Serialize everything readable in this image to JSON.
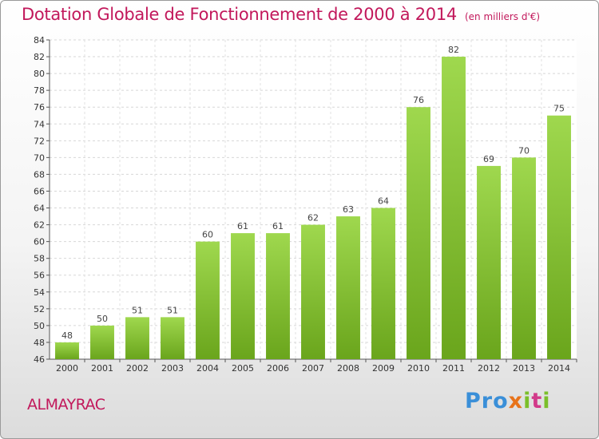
{
  "chart_data": {
    "type": "bar",
    "title": "Dotation Globale de Fonctionnement de 2000 à 2014",
    "subtitle": "(en milliers d'€)",
    "categories": [
      "2000",
      "2001",
      "2002",
      "2003",
      "2004",
      "2005",
      "2006",
      "2007",
      "2008",
      "2009",
      "2010",
      "2011",
      "2012",
      "2013",
      "2014"
    ],
    "values": [
      48,
      50,
      51,
      51,
      60,
      61,
      61,
      62,
      63,
      64,
      76,
      82,
      69,
      70,
      75
    ],
    "ylim": [
      46,
      84
    ],
    "yticks": [
      46,
      48,
      50,
      52,
      54,
      56,
      58,
      60,
      62,
      64,
      66,
      68,
      70,
      72,
      74,
      76,
      78,
      80,
      82,
      84
    ],
    "grid": true,
    "bar_color": "#7bbf2a"
  },
  "footer": {
    "town": "ALMAYRAC",
    "logo": [
      "Pro",
      "x",
      "i",
      "t",
      "i"
    ]
  },
  "colors": {
    "accent": "#c2185b",
    "bar_light": "#9fd84e",
    "bar_dark": "#6aa51c"
  }
}
